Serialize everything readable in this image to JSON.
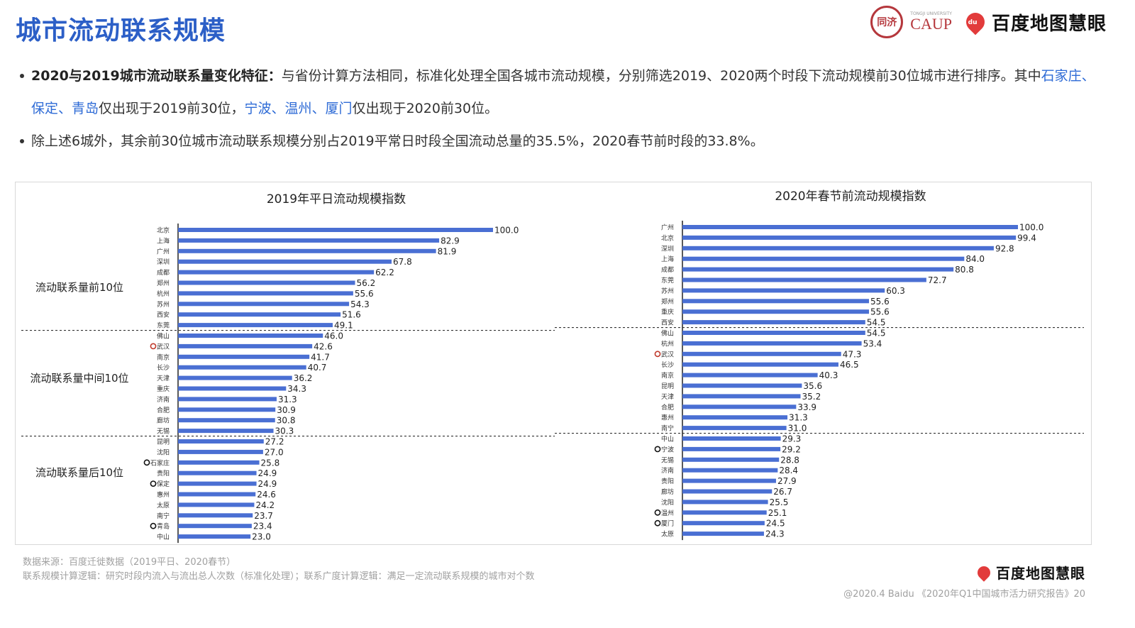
{
  "header": {
    "title": "城市流动联系规模",
    "seal_text": "同济",
    "caup_small": "TONGJI UNIVERSITY",
    "caup_big": "CAUP",
    "du_label": "du",
    "brand": "百度地图慧眼"
  },
  "bullets": [
    {
      "lead": "2020与2019城市流动联系量变化特征：",
      "text_a": "与省份计算方法相同，标准化处理全国各城市流动规模，分别筛选2019、2020两个时段下流动规模前30位城市进行排序。其中",
      "hl_a": "石家庄、保定、青岛",
      "text_b": "仅出现于2019前30位，",
      "hl_b": "宁波、温州、厦门",
      "text_c": "仅出现于2020前30位。"
    },
    {
      "text": "除上述6城外，其余前30位城市流动联系规模分别占2019平常日时段全国流动总量的35.5%，2020春节前时段的33.8%。"
    }
  ],
  "colors": {
    "bar": "#4a6fd3",
    "title": "#2c5fc7",
    "highlight": "#2e6bd6",
    "marker_red": "#c0392b"
  },
  "group_labels": [
    "流动联系量前10位",
    "流动联系量中间10位",
    "流动联系量后10位"
  ],
  "chart_data": [
    {
      "type": "bar",
      "orientation": "horizontal",
      "title": "2019年平日流动规模指数",
      "xlim": [
        0,
        100
      ],
      "categories": [
        "北京",
        "上海",
        "广州",
        "深圳",
        "成都",
        "郑州",
        "杭州",
        "苏州",
        "西安",
        "东莞",
        "佛山",
        "武汉",
        "南京",
        "长沙",
        "天津",
        "重庆",
        "济南",
        "合肥",
        "廊坊",
        "无锡",
        "昆明",
        "沈阳",
        "石家庄",
        "贵阳",
        "保定",
        "惠州",
        "太原",
        "南宁",
        "青岛",
        "中山"
      ],
      "values": [
        100.0,
        82.9,
        81.9,
        67.8,
        62.2,
        56.2,
        55.6,
        54.3,
        51.6,
        49.1,
        46.0,
        42.6,
        41.7,
        40.7,
        36.2,
        34.3,
        31.3,
        30.9,
        30.8,
        30.3,
        27.2,
        27.0,
        25.8,
        24.9,
        24.9,
        24.6,
        24.2,
        23.7,
        23.4,
        23.0
      ],
      "labels": [
        "100.0",
        "82.9",
        "81.9",
        "67.8",
        "62.2",
        "56.2",
        "55.6",
        "54.3",
        "51.6",
        "49.1",
        "46.0",
        "42.6",
        "41.7",
        "40.7",
        "36.2",
        "34.3",
        "31.3",
        "30.9",
        "30.8",
        "30.3",
        "27.2",
        "27.0",
        "25.8",
        "24.9",
        "24.9",
        "24.6",
        "24.2",
        "23.7",
        "23.4",
        "23.0"
      ],
      "markers": {
        "武汉": "red",
        "石家庄": "black",
        "保定": "black",
        "青岛": "black"
      }
    },
    {
      "type": "bar",
      "orientation": "horizontal",
      "title": "2020年春节前流动规模指数",
      "xlim": [
        0,
        100
      ],
      "categories": [
        "广州",
        "北京",
        "深圳",
        "上海",
        "成都",
        "东莞",
        "苏州",
        "郑州",
        "重庆",
        "西安",
        "佛山",
        "杭州",
        "武汉",
        "长沙",
        "南京",
        "昆明",
        "天津",
        "合肥",
        "惠州",
        "南宁",
        "中山",
        "宁波",
        "无锡",
        "济南",
        "贵阳",
        "廊坊",
        "沈阳",
        "温州",
        "厦门",
        "太原"
      ],
      "values": [
        100.0,
        99.4,
        92.8,
        84.0,
        80.8,
        72.7,
        60.3,
        55.6,
        55.6,
        54.5,
        54.5,
        53.4,
        47.3,
        46.5,
        40.3,
        35.6,
        35.2,
        33.9,
        31.3,
        31.0,
        29.3,
        29.2,
        28.8,
        28.4,
        27.9,
        26.7,
        25.5,
        25.1,
        24.5,
        24.3
      ],
      "labels": [
        "100.0",
        "99.4",
        "92.8",
        "84.0",
        "80.8",
        "72.7",
        "60.3",
        "55.6",
        "55.6",
        "54.5",
        "54.5",
        "53.4",
        "47.3",
        "46.5",
        "40.3",
        "35.6",
        "35.2",
        "33.9",
        "31.3",
        "31.0",
        "29.3",
        "29.2",
        "28.8",
        "28.4",
        "27.9",
        "26.7",
        "25.5",
        "25.1",
        "24.5",
        "24.3"
      ],
      "markers": {
        "武汉": "red",
        "宁波": "black",
        "温州": "black",
        "厦门": "black"
      }
    }
  ],
  "footer": {
    "source": "数据来源：百度迁徙数据（2019平日、2020春节）",
    "logic": "联系规模计算逻辑：研究时段内流入与流出总人次数（标准化处理）；联系广度计算逻辑：满足一定流动联系规模的城市对个数",
    "brand": "百度地图慧眼",
    "copyright": "@2020.4 Baidu 《2020年Q1中国城市活力研究报告》20"
  }
}
